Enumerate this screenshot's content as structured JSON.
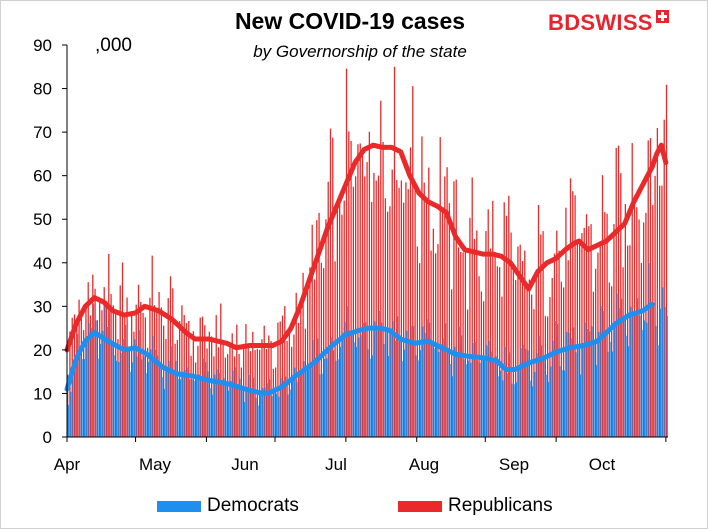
{
  "header": {
    "title": "New COVID-19 cases",
    "subtitle": "by Governorship of the state",
    "units": ",000",
    "logo_text": "BDSWISS"
  },
  "colors": {
    "democrats": "#1e8fef",
    "republicans": "#ea2a2a",
    "axis": "#000000"
  },
  "legend": {
    "democrats": "Democrats",
    "republicans": "Republicans"
  },
  "chart_data": {
    "type": "bar",
    "title": "New COVID-19 cases",
    "subtitle": "by Governorship of the state",
    "ylabel": ",000",
    "ylim": [
      0,
      90
    ],
    "yticks": [
      0,
      10,
      20,
      30,
      40,
      50,
      60,
      70,
      80,
      90
    ],
    "xlabels": [
      "Apr",
      "May",
      "Jun",
      "Jul",
      "Aug",
      "Sep",
      "Oct"
    ],
    "x_start": "2020-03-31",
    "x_end": "2020-10-27",
    "grid": false,
    "legend_position": "bottom",
    "series": [
      {
        "name": "Democrats",
        "type": "bar + 7-day average line",
        "average_anchors": [
          [
            0,
            11
          ],
          [
            4,
            18
          ],
          [
            8,
            22
          ],
          [
            12,
            24
          ],
          [
            18,
            22
          ],
          [
            25,
            20
          ],
          [
            30,
            20.5
          ],
          [
            35,
            19
          ],
          [
            42,
            16
          ],
          [
            48,
            14.5
          ],
          [
            55,
            14
          ],
          [
            62,
            13
          ],
          [
            68,
            12.5
          ],
          [
            72,
            12
          ],
          [
            78,
            11
          ],
          [
            84,
            10.2
          ],
          [
            88,
            10
          ],
          [
            94,
            11.5
          ],
          [
            100,
            14
          ],
          [
            108,
            17
          ],
          [
            116,
            21
          ],
          [
            122,
            23.5
          ],
          [
            128,
            24.5
          ],
          [
            132,
            25
          ],
          [
            137,
            25
          ],
          [
            141,
            24.5
          ],
          [
            146,
            22.5
          ],
          [
            152,
            21.5
          ],
          [
            158,
            22
          ],
          [
            164,
            20.5
          ],
          [
            170,
            19
          ],
          [
            176,
            18.5
          ],
          [
            182,
            18.2
          ],
          [
            188,
            17.5
          ],
          [
            192,
            15.5
          ],
          [
            196,
            15.5
          ],
          [
            202,
            17
          ],
          [
            208,
            18
          ],
          [
            214,
            19.5
          ],
          [
            220,
            20.5
          ],
          [
            226,
            21
          ],
          [
            232,
            22
          ],
          [
            236,
            24
          ],
          [
            240,
            26
          ],
          [
            246,
            28
          ],
          [
            252,
            29
          ],
          [
            256,
            30.5
          ]
        ]
      },
      {
        "name": "Republicans",
        "type": "bar + 7-day average line",
        "average_anchors": [
          [
            0,
            20
          ],
          [
            4,
            26
          ],
          [
            8,
            30
          ],
          [
            12,
            32
          ],
          [
            16,
            31
          ],
          [
            20,
            29
          ],
          [
            25,
            28
          ],
          [
            30,
            28.5
          ],
          [
            34,
            30
          ],
          [
            40,
            29
          ],
          [
            46,
            27
          ],
          [
            52,
            24
          ],
          [
            56,
            22.5
          ],
          [
            62,
            22.5
          ],
          [
            66,
            22
          ],
          [
            70,
            21.5
          ],
          [
            74,
            20.5
          ],
          [
            80,
            21
          ],
          [
            86,
            21
          ],
          [
            90,
            21
          ],
          [
            94,
            22
          ],
          [
            98,
            25
          ],
          [
            102,
            30
          ],
          [
            106,
            36
          ],
          [
            110,
            42
          ],
          [
            114,
            48
          ],
          [
            118,
            53
          ],
          [
            122,
            58
          ],
          [
            126,
            63
          ],
          [
            130,
            66
          ],
          [
            134,
            67
          ],
          [
            138,
            66.5
          ],
          [
            142,
            66.5
          ],
          [
            146,
            65.5
          ],
          [
            150,
            60
          ],
          [
            154,
            56
          ],
          [
            158,
            54
          ],
          [
            162,
            53
          ],
          [
            166,
            51.5
          ],
          [
            170,
            46
          ],
          [
            174,
            43
          ],
          [
            178,
            42.5
          ],
          [
            182,
            42
          ],
          [
            186,
            42
          ],
          [
            190,
            41.5
          ],
          [
            194,
            40
          ],
          [
            198,
            37
          ],
          [
            202,
            34
          ],
          [
            206,
            38
          ],
          [
            210,
            40
          ],
          [
            214,
            41
          ],
          [
            218,
            43
          ],
          [
            222,
            44.5
          ],
          [
            224,
            45
          ],
          [
            228,
            43
          ],
          [
            232,
            44
          ],
          [
            236,
            45
          ],
          [
            240,
            47
          ],
          [
            244,
            49
          ],
          [
            248,
            54
          ],
          [
            252,
            58
          ],
          [
            256,
            62
          ],
          [
            258,
            65
          ],
          [
            260,
            67
          ],
          [
            262,
            63
          ]
        ]
      }
    ]
  }
}
